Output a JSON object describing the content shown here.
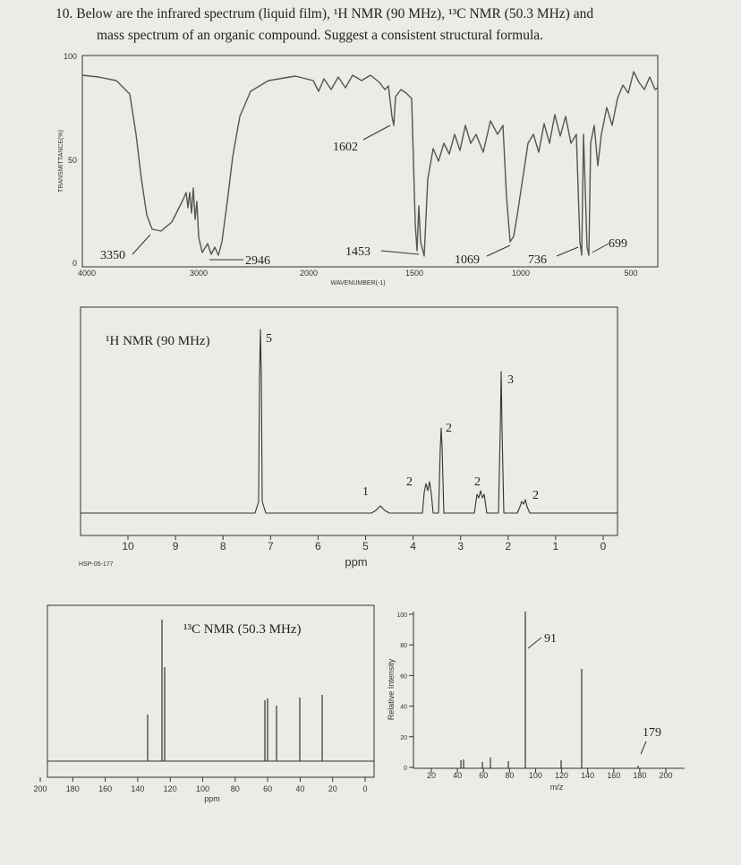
{
  "header": {
    "line1": "10. Below are the infrared spectrum (liquid film), ¹H NMR (90 MHz), ¹³C NMR (50.3 MHz) and",
    "line2": "mass spectrum of an organic compound.  Suggest a consistent structural formula."
  },
  "ir": {
    "y_label": "TRANSMITTANCE(%)",
    "x_label": "WAVENUMBER(-1)",
    "yticks": [
      "100",
      "50",
      "0"
    ],
    "xticks": [
      "4000",
      "3000",
      "2000",
      "1500",
      "1000",
      "500"
    ],
    "annotations": [
      "3350",
      "2946",
      "1602",
      "1453",
      "1069",
      "736",
      "699"
    ]
  },
  "h_nmr": {
    "title": "¹H NMR (90 MHz)",
    "x_label": "ppm",
    "code": "HSP-05-177",
    "xticks": [
      "10",
      "9",
      "8",
      "7",
      "6",
      "5",
      "4",
      "3",
      "2",
      "1",
      "0"
    ],
    "integrals": [
      "5",
      "1",
      "2",
      "2",
      "2",
      "3",
      "2"
    ]
  },
  "c_nmr": {
    "title": "¹³C NMR (50.3 MHz)",
    "x_label": "ppm",
    "xticks": [
      "200",
      "180",
      "160",
      "140",
      "120",
      "100",
      "80",
      "60",
      "40",
      "20",
      "0"
    ]
  },
  "ms": {
    "y_label": "Relative Intensity",
    "x_label": "m/z",
    "yticks": [
      "100",
      "80",
      "60",
      "40",
      "20",
      "0"
    ],
    "xticks": [
      "20",
      "40",
      "60",
      "80",
      "100",
      "120",
      "140",
      "160",
      "180",
      "200"
    ],
    "annotations": [
      "91",
      "179"
    ]
  }
}
